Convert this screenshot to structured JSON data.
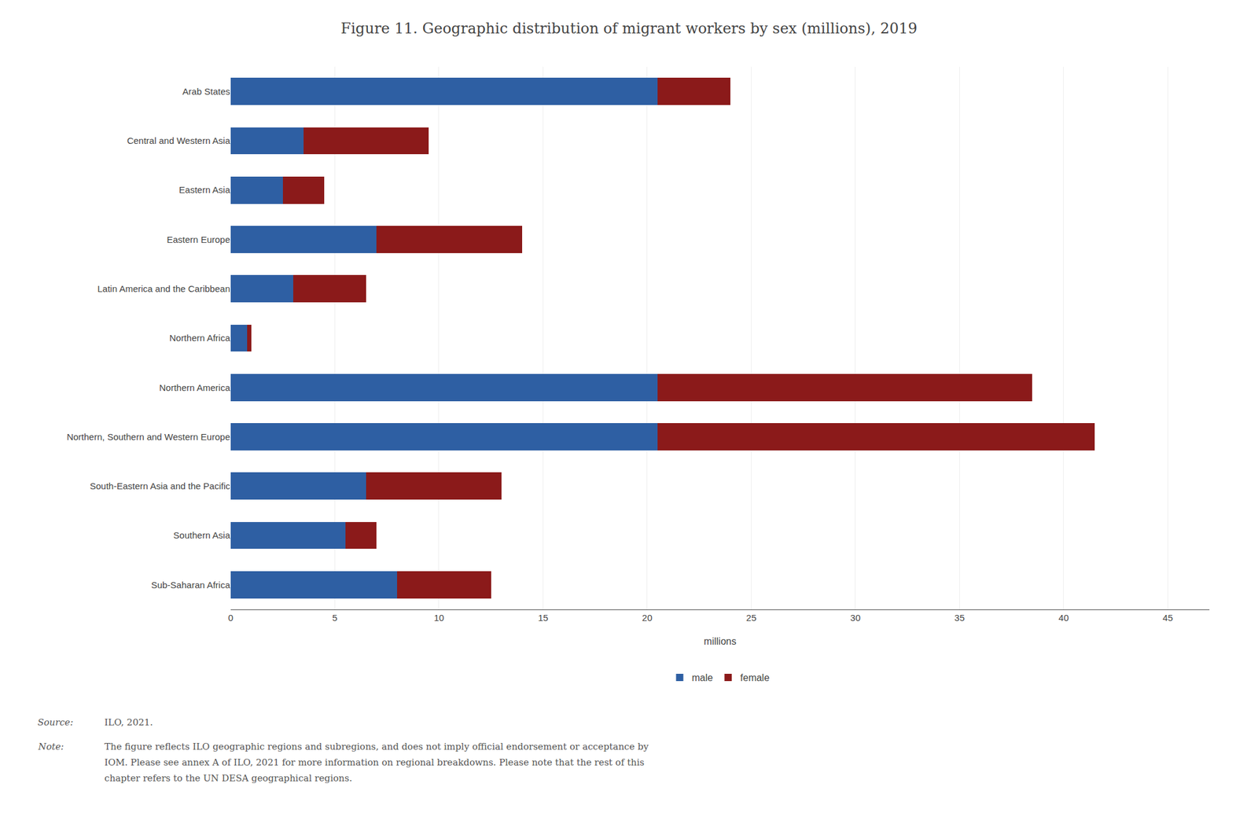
{
  "chart_data": {
    "type": "bar",
    "orientation": "horizontal",
    "stacked": true,
    "title": "Figure 11. Geographic distribution of migrant workers by sex (millions), 2019",
    "x_label": "millions",
    "categories": [
      "Sub-Saharan Africa",
      "Southern Asia",
      "South-Eastern Asia and the Pacific",
      "Northern, Southern and Western Europe",
      "Northern America",
      "Northern Africa",
      "Latin America and the Caribbean",
      "Eastern Europe",
      "Eastern Asia",
      "Central and Western Asia",
      "Arab States"
    ],
    "series": [
      {
        "name": "male",
        "color": "#2E5FA3",
        "values": [
          8.0,
          5.5,
          6.5,
          20.5,
          20.5,
          0.8,
          3.0,
          7.0,
          2.5,
          3.5,
          20.5
        ]
      },
      {
        "name": "female",
        "color": "#8B1A1A",
        "values": [
          4.5,
          1.5,
          6.5,
          21.0,
          18.0,
          0.2,
          3.5,
          7.0,
          2.0,
          6.0,
          3.5
        ]
      }
    ],
    "xlim": [
      0,
      47
    ],
    "xticks": [
      0,
      5,
      10,
      15,
      20,
      25,
      30,
      35,
      40,
      45
    ],
    "grid": true,
    "legend": "bottom",
    "annotations": [
      {
        "label": "Source:",
        "text": [
          "ILO, 2021."
        ]
      },
      {
        "label": "Note:",
        "text": [
          "The figure reflects ILO geographic regions and subregions, and does not imply official endorsement or acceptance by",
          "IOM. Please see annex A of ILO, 2021 for more information on regional breakdowns. Please note that the rest of this",
          "chapter refers to the UN DESA geographical regions."
        ]
      }
    ]
  }
}
